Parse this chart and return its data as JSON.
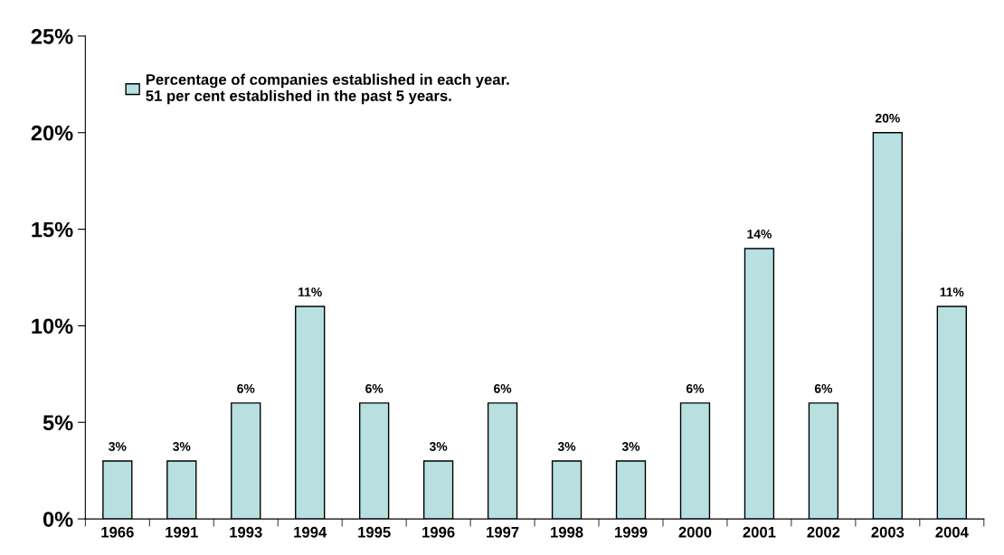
{
  "chart_data": {
    "type": "bar",
    "categories": [
      "1966",
      "1991",
      "1993",
      "1994",
      "1995",
      "1996",
      "1997",
      "1998",
      "1999",
      "2000",
      "2001",
      "2002",
      "2003",
      "2004"
    ],
    "series": [
      {
        "name": "Percentage of companies established in each year.\n51 per cent established in the past 5 years.",
        "color": "#b8e0e0",
        "values": [
          3,
          3,
          6,
          11,
          6,
          3,
          6,
          3,
          3,
          6,
          14,
          6,
          20,
          11
        ],
        "value_labels": [
          "3%",
          "3%",
          "6%",
          "11%",
          "6%",
          "3%",
          "6%",
          "3%",
          "3%",
          "6%",
          "14%",
          "6%",
          "20%",
          "11%"
        ]
      }
    ],
    "ylim": [
      0,
      25
    ],
    "yticks": [
      {
        "value": 0,
        "label": "0%"
      },
      {
        "value": 5,
        "label": "5%"
      },
      {
        "value": 10,
        "label": "10%"
      },
      {
        "value": 15,
        "label": "15%"
      },
      {
        "value": 20,
        "label": "20%"
      },
      {
        "value": 25,
        "label": "25%"
      }
    ],
    "grid": false,
    "legend": "top left"
  }
}
